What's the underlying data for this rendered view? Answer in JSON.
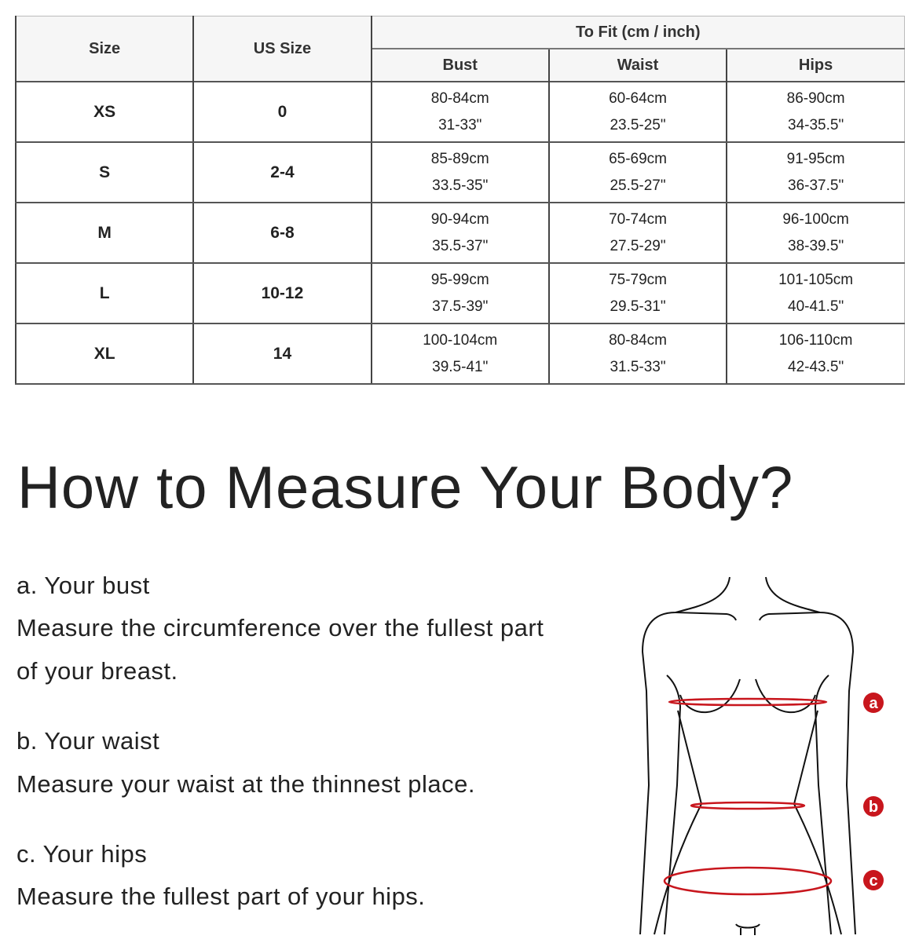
{
  "table": {
    "headers": {
      "size": "Size",
      "us_size": "US Size",
      "to_fit": "To Fit (cm / inch)",
      "bust": "Bust",
      "waist": "Waist",
      "hips": "Hips"
    },
    "rows": [
      {
        "size": "XS",
        "us": "0",
        "bust_cm": "80-84cm",
        "bust_in": "31-33\"",
        "waist_cm": "60-64cm",
        "waist_in": "23.5-25\"",
        "hips_cm": "86-90cm",
        "hips_in": "34-35.5\""
      },
      {
        "size": "S",
        "us": "2-4",
        "bust_cm": "85-89cm",
        "bust_in": "33.5-35\"",
        "waist_cm": "65-69cm",
        "waist_in": "25.5-27\"",
        "hips_cm": "91-95cm",
        "hips_in": "36-37.5\""
      },
      {
        "size": "M",
        "us": "6-8",
        "bust_cm": "90-94cm",
        "bust_in": "35.5-37\"",
        "waist_cm": "70-74cm",
        "waist_in": "27.5-29\"",
        "hips_cm": "96-100cm",
        "hips_in": "38-39.5\""
      },
      {
        "size": "L",
        "us": "10-12",
        "bust_cm": "95-99cm",
        "bust_in": "37.5-39\"",
        "waist_cm": "75-79cm",
        "waist_in": "29.5-31\"",
        "hips_cm": "101-105cm",
        "hips_in": "40-41.5\""
      },
      {
        "size": "XL",
        "us": "14",
        "bust_cm": "100-104cm",
        "bust_in": "39.5-41\"",
        "waist_cm": "80-84cm",
        "waist_in": "31.5-33\"",
        "hips_cm": "106-110cm",
        "hips_in": "42-43.5\""
      }
    ]
  },
  "guide": {
    "title": "How to Measure Your Body?",
    "items": [
      {
        "heading": "a. Your bust",
        "line1": "Measure the circumference over the fullest part",
        "line2": "of your breast."
      },
      {
        "heading": "b. Your waist",
        "line1": "Measure your waist at the thinnest place."
      },
      {
        "heading": "c. Your hips",
        "line1": "Measure the fullest part of your hips."
      }
    ],
    "figure": {
      "labels": [
        "a",
        "b",
        "c"
      ],
      "accent": "#c8161d"
    }
  }
}
